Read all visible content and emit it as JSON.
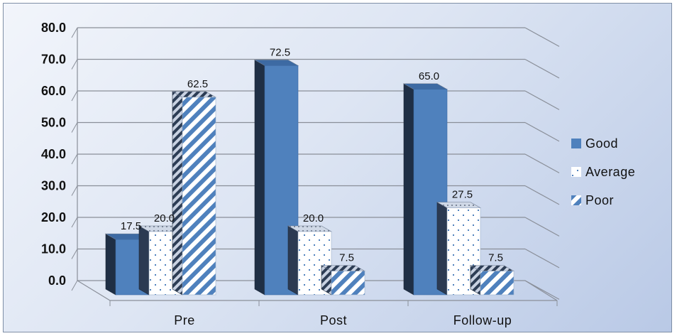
{
  "chart_data": {
    "type": "bar",
    "categories": [
      "Pre",
      "Post",
      "Follow-up"
    ],
    "series": [
      {
        "name": "Good",
        "values": [
          17.5,
          72.5,
          65.0
        ],
        "labels": [
          "17.5",
          "72.5",
          "65.0"
        ],
        "color": "#4f81bd",
        "pattern": "solid"
      },
      {
        "name": "Average",
        "values": [
          20.0,
          20.0,
          27.5
        ],
        "labels": [
          "20.0",
          "20.0",
          "27.5"
        ],
        "color": "#4f81bd",
        "pattern": "dots"
      },
      {
        "name": "Poor",
        "values": [
          62.5,
          7.5,
          7.5
        ],
        "labels": [
          "62.5",
          "7.5",
          "7.5"
        ],
        "color": "#4f81bd",
        "pattern": "diagonal"
      }
    ],
    "yticks": [
      "0.0",
      "10.0",
      "20.0",
      "30.0",
      "40.0",
      "50.0",
      "60.0",
      "70.0",
      "80.0"
    ],
    "ylim": [
      0,
      80
    ],
    "grid": true,
    "legend": "right",
    "style": "3d-clustered"
  }
}
